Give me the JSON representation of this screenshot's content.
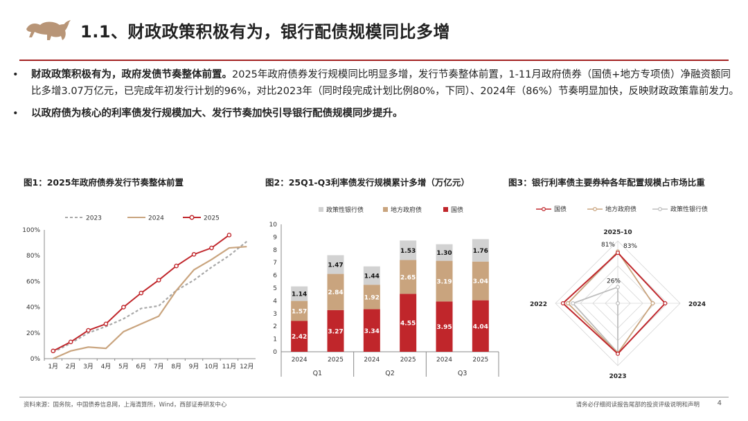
{
  "header": {
    "title": "1.1、财政政策积极有为，银行配债规模同比多增"
  },
  "bullets": [
    {
      "bold": "财政政策积极有为，政府发债节奏整体前置。",
      "text": "2025年政府债券发行规模同比明显多增，发行节奏整体前置，1-11月政府债券（国债+地方专项债）净融资额同比多增3.07万亿元，已完成年初发行计划的96%，对比2023年（同时段完成计划比例80%，下同）、2024年（86%）节奏明显加快，反映财政政策靠前发力。"
    },
    {
      "bold": "以政府债为核心的利率债发行规模加大、发行节奏加快引导银行配债规模同步提升。",
      "text": ""
    }
  ],
  "figures": {
    "fig1_title": "图1：2025年政府债券发行节奏整体前置",
    "fig2_title": "图2：25Q1-Q3利率债发行规模累计多增（万亿元）",
    "fig3_title": "图3：银行利率债主要券种各年配置规模占市场比重"
  },
  "chart_data": [
    {
      "type": "line",
      "title": "图1：2025年政府债券发行节奏整体前置",
      "categories": [
        "1月",
        "2月",
        "3月",
        "4月",
        "5月",
        "6月",
        "7月",
        "8月",
        "9月",
        "10月",
        "11月",
        "12月"
      ],
      "ylim": [
        0,
        100
      ],
      "yticks": [
        "0%",
        "20%",
        "40%",
        "60%",
        "80%",
        "100%"
      ],
      "legend_position": "top",
      "series": [
        {
          "name": "2023",
          "color": "#a8a8a8",
          "style": "dashed",
          "values": [
            5,
            12,
            20,
            25,
            31,
            39,
            41,
            53,
            61,
            71,
            80,
            91
          ]
        },
        {
          "name": "2024",
          "color": "#c9a47e",
          "style": "solid",
          "values": [
            0,
            6,
            9,
            8,
            21,
            27,
            33,
            53,
            69,
            77,
            86,
            87
          ]
        },
        {
          "name": "2025",
          "color": "#c0262b",
          "style": "solid-marker",
          "values": [
            6,
            13,
            22,
            27,
            40,
            51,
            61,
            72,
            81,
            86,
            96,
            null
          ]
        }
      ]
    },
    {
      "type": "bar",
      "stacked": true,
      "title": "图2：25Q1-Q3利率债发行规模累计多增（万亿元）",
      "categories": [
        "2024",
        "2025",
        "2024",
        "2025",
        "2024",
        "2025"
      ],
      "groups": [
        "Q1",
        "Q2",
        "Q3"
      ],
      "ylim": [
        0,
        10
      ],
      "yticks": [
        "0",
        "1",
        "2",
        "3",
        "4",
        "5",
        "6",
        "7",
        "8",
        "9",
        "10"
      ],
      "legend_position": "top",
      "series": [
        {
          "name": "国债",
          "color": "#c0262b",
          "values": [
            2.42,
            3.27,
            3.34,
            4.55,
            3.95,
            4.04
          ]
        },
        {
          "name": "地方政府债",
          "color": "#c9a47e",
          "values": [
            1.57,
            2.84,
            1.92,
            2.65,
            3.19,
            3.04
          ]
        },
        {
          "name": "政策性银行债",
          "color": "#d2d2d2",
          "values": [
            1.14,
            1.47,
            1.44,
            1.53,
            1.3,
            1.76
          ]
        }
      ]
    },
    {
      "type": "radar",
      "title": "图3：银行利率债主要券种各年配置规模占市场比重",
      "axes": [
        "2025-10",
        "2024",
        "2023",
        "2022"
      ],
      "legend_position": "top",
      "series": [
        {
          "name": "国债",
          "color": "#c0262b",
          "values": [
            81,
            76,
            81,
            88
          ]
        },
        {
          "name": "地方政府债",
          "color": "#c9a47e",
          "values": [
            83,
            56,
            80,
            80
          ]
        },
        {
          "name": "政策性银行债",
          "color": "#bdbdbd",
          "values": [
            26,
            0,
            79,
            72
          ]
        }
      ],
      "annotations": [
        "81%",
        "83%",
        "26%"
      ]
    }
  ],
  "footer": {
    "source": "资料来源：国务院，中国债券信息网，上海清算所，Wind，西部证券研发中心",
    "disclaimer": "请务必仔细阅读报告尾部的投资评级说明和声明",
    "page": "4"
  }
}
